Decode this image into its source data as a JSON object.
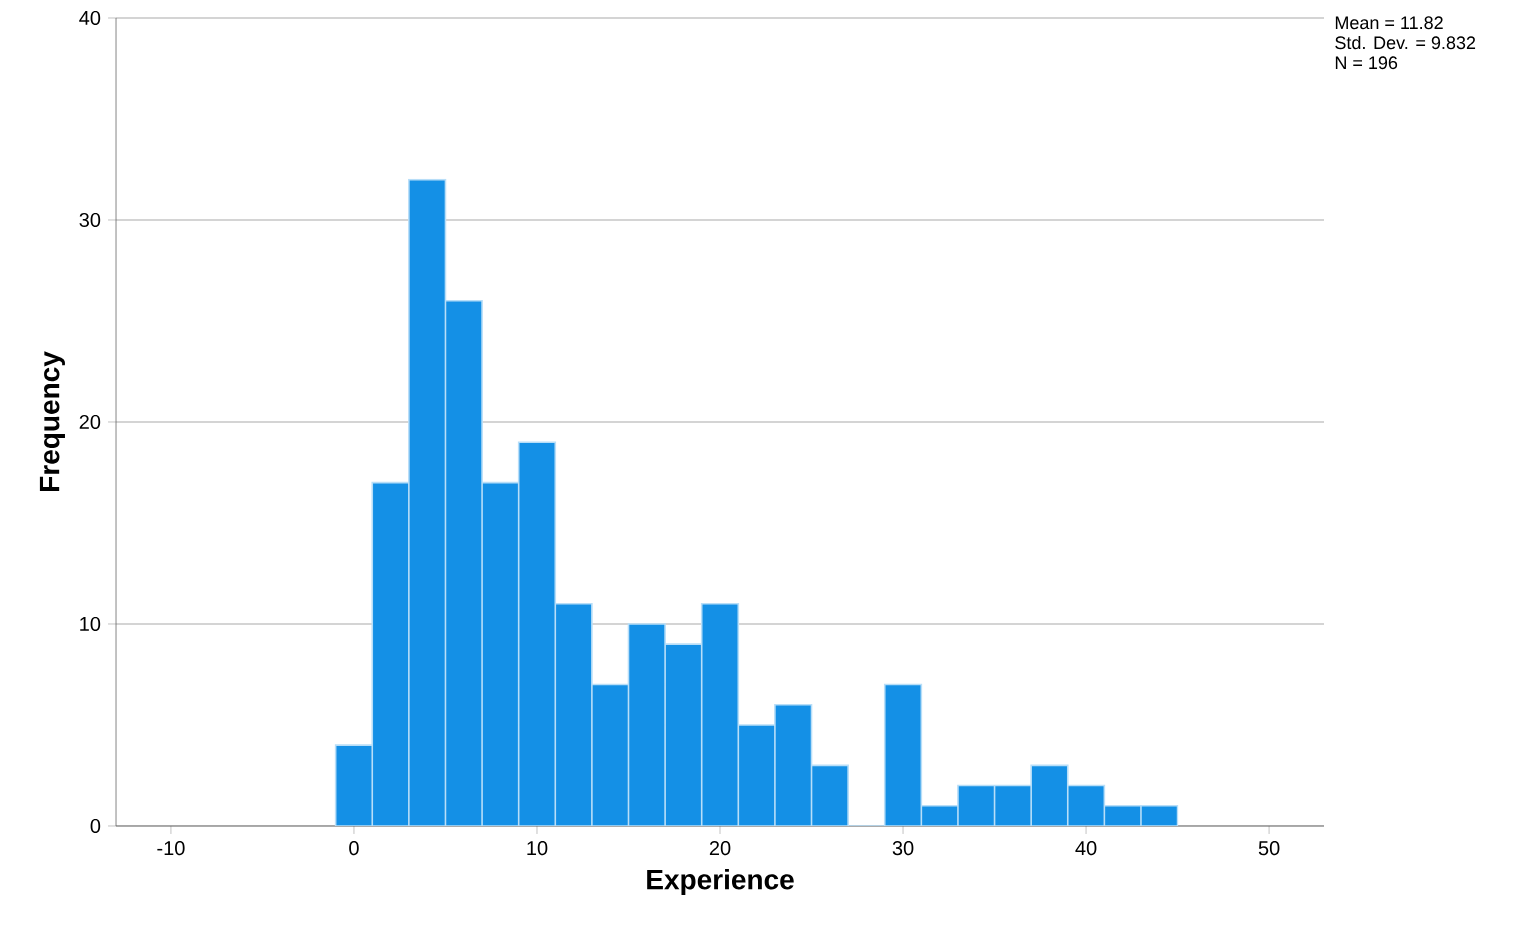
{
  "chart_data": {
    "type": "histogram",
    "xlabel": "Experience",
    "ylabel": "Frequency",
    "bins": [
      -1,
      1,
      3,
      5,
      7,
      9,
      11,
      13,
      15,
      17,
      19,
      21,
      23,
      25,
      27,
      29,
      31,
      33,
      35,
      37,
      39,
      41,
      43,
      45
    ],
    "values": [
      4,
      17,
      32,
      26,
      17,
      19,
      11,
      7,
      10,
      9,
      11,
      5,
      6,
      3,
      0,
      7,
      1,
      2,
      2,
      3,
      2,
      1,
      1
    ],
    "color": "#1490e6",
    "xlim": [
      -13,
      53
    ],
    "xticks": [
      -10,
      0,
      10,
      20,
      30,
      40,
      50
    ],
    "ylim": [
      0,
      40
    ],
    "yticks": [
      0,
      10,
      20,
      30,
      40
    ],
    "grid": "y",
    "annotations": [
      "Mean = 11.82",
      "Std. Dev. = 9.832",
      "N = 196"
    ]
  }
}
